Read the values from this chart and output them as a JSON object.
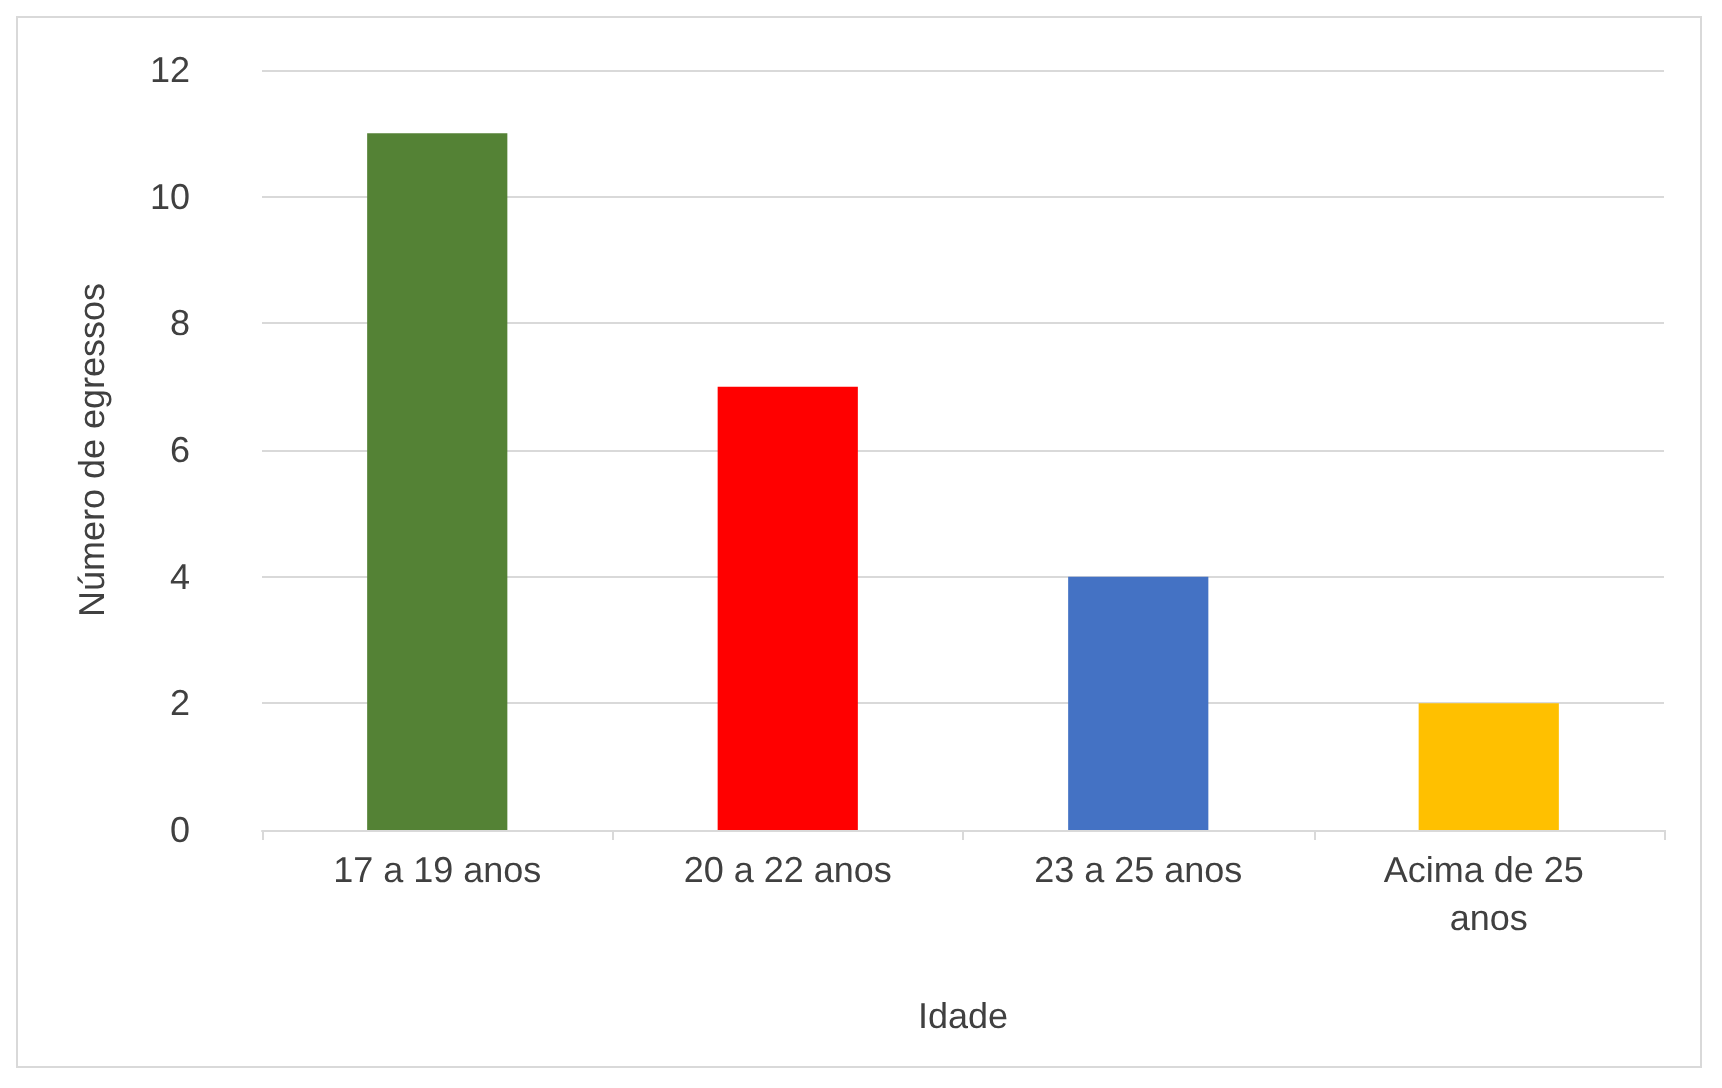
{
  "chart_data": {
    "type": "bar",
    "xlabel": "Idade",
    "ylabel": "Número de egressos",
    "categories": [
      "17 a 19 anos",
      "20 a 22 anos",
      "23 a 25 anos",
      "Acima de 25 anos"
    ],
    "values": [
      11,
      7,
      4,
      2
    ],
    "colors": [
      "#548235",
      "#ff0000",
      "#4472c4",
      "#ffc000"
    ],
    "ylim": [
      0,
      12
    ],
    "yticks": [
      0,
      2,
      4,
      6,
      8,
      10,
      12
    ],
    "grid": "y"
  }
}
